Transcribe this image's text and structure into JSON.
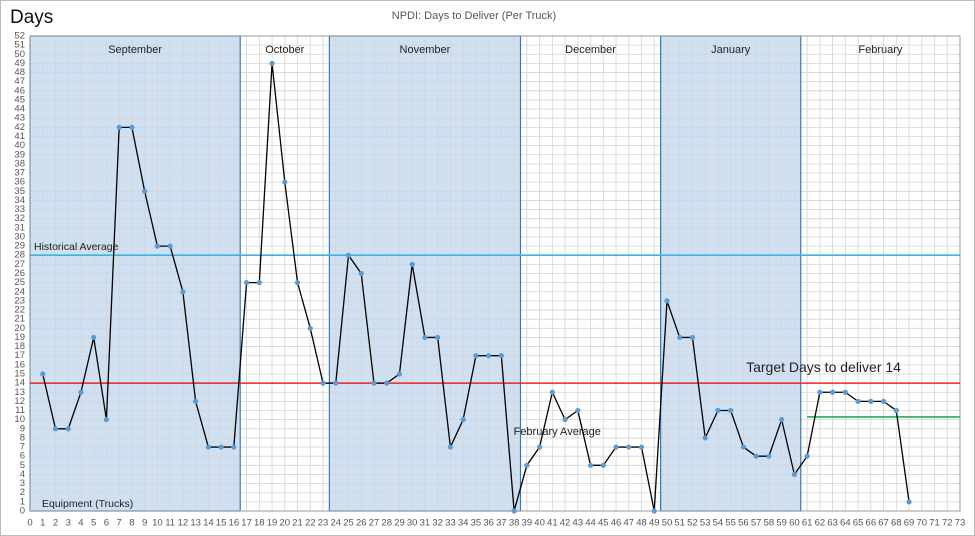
{
  "chart_data": {
    "type": "line",
    "title": "NPDI:  Days to Deliver (Per Truck)",
    "y_label": "Days",
    "x_label": "Equipment (Trucks)",
    "x": [
      1,
      2,
      3,
      4,
      5,
      6,
      7,
      8,
      9,
      10,
      11,
      12,
      13,
      14,
      15,
      16,
      17,
      18,
      19,
      20,
      21,
      22,
      23,
      24,
      25,
      26,
      27,
      28,
      29,
      30,
      31,
      32,
      33,
      34,
      35,
      36,
      37,
      38,
      39,
      40,
      41,
      42,
      43,
      44,
      45,
      46,
      47,
      48,
      49,
      50,
      51,
      52,
      53,
      54,
      55,
      56,
      57,
      58,
      59,
      60,
      61,
      62,
      63,
      64,
      65,
      66,
      67,
      68,
      69
    ],
    "series": [
      {
        "color": "#000000",
        "marker_color": "#5b9bd5",
        "values": [
          15,
          9,
          9,
          13,
          19,
          10,
          42,
          42,
          35,
          29,
          29,
          24,
          12,
          7,
          7,
          7,
          25,
          25,
          49,
          36,
          25,
          20,
          14,
          14,
          28,
          26,
          14,
          14,
          15,
          27,
          19,
          19,
          7,
          10,
          17,
          17,
          17,
          0,
          5,
          7,
          13,
          10,
          11,
          5,
          5,
          7,
          7,
          7,
          0,
          23,
          19,
          19,
          8,
          11,
          11,
          7,
          6,
          6,
          10,
          4,
          6,
          13,
          13,
          13,
          12,
          12,
          12,
          11,
          1
        ]
      }
    ],
    "xlim": [
      0,
      73
    ],
    "ylim": [
      0,
      52
    ],
    "xticks": [
      0,
      1,
      2,
      3,
      4,
      5,
      6,
      7,
      8,
      9,
      10,
      11,
      12,
      13,
      14,
      15,
      16,
      17,
      18,
      19,
      20,
      21,
      22,
      23,
      24,
      25,
      26,
      27,
      28,
      29,
      30,
      31,
      32,
      33,
      34,
      35,
      36,
      37,
      38,
      39,
      40,
      41,
      42,
      43,
      44,
      45,
      46,
      47,
      48,
      49,
      50,
      51,
      52,
      53,
      54,
      55,
      56,
      57,
      58,
      59,
      60,
      61,
      62,
      63,
      64,
      65,
      66,
      67,
      68,
      69,
      70,
      71,
      72,
      73
    ],
    "yticks": [
      0,
      1,
      2,
      3,
      4,
      5,
      6,
      7,
      8,
      9,
      10,
      11,
      12,
      13,
      14,
      15,
      16,
      17,
      18,
      19,
      20,
      21,
      22,
      23,
      24,
      25,
      26,
      27,
      28,
      29,
      30,
      31,
      32,
      33,
      34,
      35,
      36,
      37,
      38,
      39,
      40,
      41,
      42,
      43,
      44,
      45,
      46,
      47,
      48,
      49,
      50,
      51,
      52
    ],
    "grid": true,
    "months": [
      {
        "name": "September",
        "from": 0,
        "to": 16.5,
        "shaded": true
      },
      {
        "name": "October",
        "from": 16.5,
        "to": 23.5,
        "shaded": false
      },
      {
        "name": "November",
        "from": 23.5,
        "to": 38.5,
        "shaded": true
      },
      {
        "name": "December",
        "from": 38.5,
        "to": 49.5,
        "shaded": false
      },
      {
        "name": "January",
        "from": 49.5,
        "to": 60.5,
        "shaded": true
      },
      {
        "name": "February",
        "from": 60.5,
        "to": 73,
        "shaded": false
      }
    ],
    "reference_lines": [
      {
        "label": "Historical Average",
        "value": 28,
        "color": "#3fb3e0",
        "from": 0,
        "to": 73
      },
      {
        "label": "Target Days to deliver 14",
        "value": 14,
        "color": "#e8252a",
        "from": 0,
        "to": 73
      },
      {
        "label": "February Average",
        "value": 10.3,
        "color": "#22b14c",
        "from": 61,
        "to": 73
      }
    ]
  }
}
